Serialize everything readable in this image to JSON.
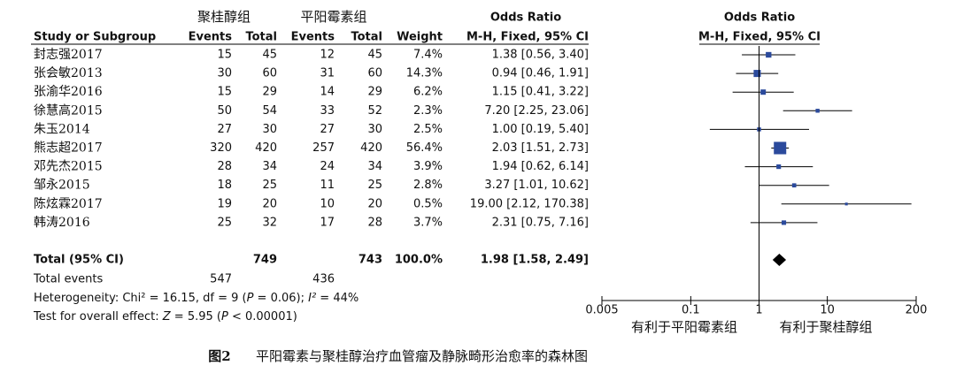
{
  "chart_data": {
    "type": "forest",
    "group_labels": [
      "聚桂醇组",
      "平阳霉素组"
    ],
    "columns": [
      "Study or Subgroup",
      "Events",
      "Total",
      "Events",
      "Total",
      "Weight",
      "M-H, Fixed, 95% CI"
    ],
    "ci_header": "Odds Ratio",
    "plot_header": [
      "Odds Ratio",
      "M-H, Fixed, 95% CI"
    ],
    "studies": [
      {
        "name": "封志强2017",
        "events1": 15,
        "total1": 45,
        "events2": 12,
        "total2": 45,
        "weight": 7.4,
        "weight_label": "7.4%",
        "or": 1.38,
        "lower": 0.56,
        "upper": 3.4,
        "ci_label": "1.38 [0.56, 3.40]"
      },
      {
        "name": "张会敏2013",
        "events1": 30,
        "total1": 60,
        "events2": 31,
        "total2": 60,
        "weight": 14.3,
        "weight_label": "14.3%",
        "or": 0.94,
        "lower": 0.46,
        "upper": 1.91,
        "ci_label": "0.94 [0.46, 1.91]"
      },
      {
        "name": "张渝华2016",
        "events1": 15,
        "total1": 29,
        "events2": 14,
        "total2": 29,
        "weight": 6.2,
        "weight_label": "6.2%",
        "or": 1.15,
        "lower": 0.41,
        "upper": 3.22,
        "ci_label": "1.15 [0.41, 3.22]"
      },
      {
        "name": "徐慧高2015",
        "events1": 50,
        "total1": 54,
        "events2": 33,
        "total2": 52,
        "weight": 2.3,
        "weight_label": "2.3%",
        "or": 7.2,
        "lower": 2.25,
        "upper": 23.06,
        "ci_label": "7.20 [2.25, 23.06]"
      },
      {
        "name": "朱玉2014",
        "events1": 27,
        "total1": 30,
        "events2": 27,
        "total2": 30,
        "weight": 2.5,
        "weight_label": "2.5%",
        "or": 1.0,
        "lower": 0.19,
        "upper": 5.4,
        "ci_label": "1.00 [0.19, 5.40]"
      },
      {
        "name": "熊志超2017",
        "events1": 320,
        "total1": 420,
        "events2": 257,
        "total2": 420,
        "weight": 56.4,
        "weight_label": "56.4%",
        "or": 2.03,
        "lower": 1.51,
        "upper": 2.73,
        "ci_label": "2.03 [1.51, 2.73]"
      },
      {
        "name": "邓先杰2015",
        "events1": 28,
        "total1": 34,
        "events2": 24,
        "total2": 34,
        "weight": 3.9,
        "weight_label": "3.9%",
        "or": 1.94,
        "lower": 0.62,
        "upper": 6.14,
        "ci_label": "1.94 [0.62, 6.14]"
      },
      {
        "name": "邹永2015",
        "events1": 18,
        "total1": 25,
        "events2": 11,
        "total2": 25,
        "weight": 2.8,
        "weight_label": "2.8%",
        "or": 3.27,
        "lower": 1.01,
        "upper": 10.62,
        "ci_label": "3.27 [1.01, 10.62]"
      },
      {
        "name": "陈炫霖2017",
        "events1": 19,
        "total1": 20,
        "events2": 10,
        "total2": 20,
        "weight": 0.5,
        "weight_label": "0.5%",
        "or": 19.0,
        "lower": 2.12,
        "upper": 170.38,
        "ci_label": "19.00 [2.12, 170.38]"
      },
      {
        "name": "韩涛2016",
        "events1": 25,
        "total1": 32,
        "events2": 17,
        "total2": 28,
        "weight": 3.7,
        "weight_label": "3.7%",
        "or": 2.31,
        "lower": 0.75,
        "upper": 7.16,
        "ci_label": "2.31 [0.75, 7.16]"
      }
    ],
    "total": {
      "name": "Total (95% CI)",
      "total1": 749,
      "total2": 743,
      "weight": 100.0,
      "weight_label": "100.0%",
      "or": 1.98,
      "lower": 1.58,
      "upper": 2.49,
      "ci_label": "1.98 [1.58, 2.49]"
    },
    "total_events": {
      "name": "Total events",
      "events1": 547,
      "events2": 436
    },
    "heterogeneity": [
      "Heterogeneity: Chi² = 16.15, df = 9 (",
      "P",
      " = 0.06); ",
      "I²",
      " = 44%"
    ],
    "overall_effect": [
      "Test for overall effect: ",
      "Z",
      " = 5.95 (",
      "P",
      " < 0.00001)"
    ],
    "log_x": true,
    "xlim": [
      0.005,
      200
    ],
    "xticks": [
      0.005,
      0.1,
      1,
      10,
      200
    ],
    "favours": [
      "有利于平阳霉素组",
      "有利于聚桂醇组"
    ],
    "square_color": "#2b4a9c",
    "caption": [
      "图2",
      "平阳霉素与聚桂醇治疗血管瘤及静脉畸形治愈率的森林图"
    ]
  }
}
